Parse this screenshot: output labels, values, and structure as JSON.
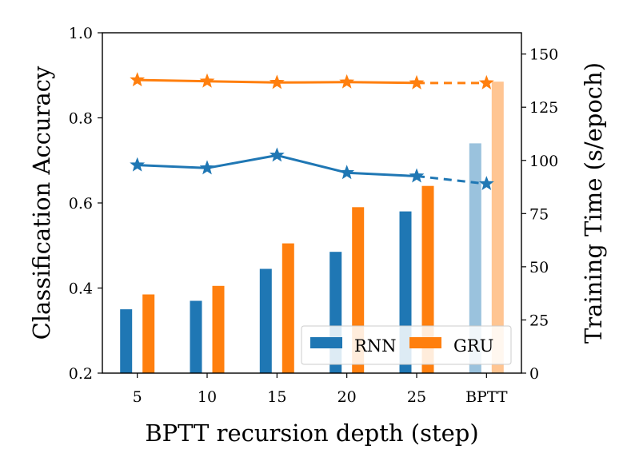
{
  "chart_data": {
    "type": "bar",
    "title": "",
    "xlabel": "BPTT recursion depth (step)",
    "ylabel_left": "Classification Accuracy",
    "ylabel_right": "Training Time (s/epoch)",
    "categories": [
      "5",
      "10",
      "15",
      "20",
      "25",
      "BPTT"
    ],
    "ylim_left": [
      0.2,
      1.0
    ],
    "yticks_left": [
      "0.2",
      "0.4",
      "0.6",
      "0.8",
      "1.0"
    ],
    "ylim_right": [
      0,
      160
    ],
    "yticks_right": [
      "0",
      "25",
      "50",
      "75",
      "100",
      "125",
      "150"
    ],
    "bar_series": [
      {
        "name": "RNN",
        "color": "#1f77b4",
        "values": [
          30,
          34,
          49,
          57,
          76,
          108
        ]
      },
      {
        "name": "GRU",
        "color": "#ff7f0e",
        "values": [
          37,
          41,
          61,
          78,
          88,
          137
        ]
      }
    ],
    "line_series": [
      {
        "name": "RNN",
        "color": "#1f77b4",
        "values": [
          0.689,
          0.682,
          0.712,
          0.671,
          0.663,
          0.645
        ]
      },
      {
        "name": "GRU",
        "color": "#ff7f0e",
        "values": [
          0.889,
          0.886,
          0.883,
          0.884,
          0.882,
          0.882
        ]
      }
    ],
    "legend": [
      "RNN",
      "GRU"
    ],
    "legend_position": "lower-right"
  }
}
